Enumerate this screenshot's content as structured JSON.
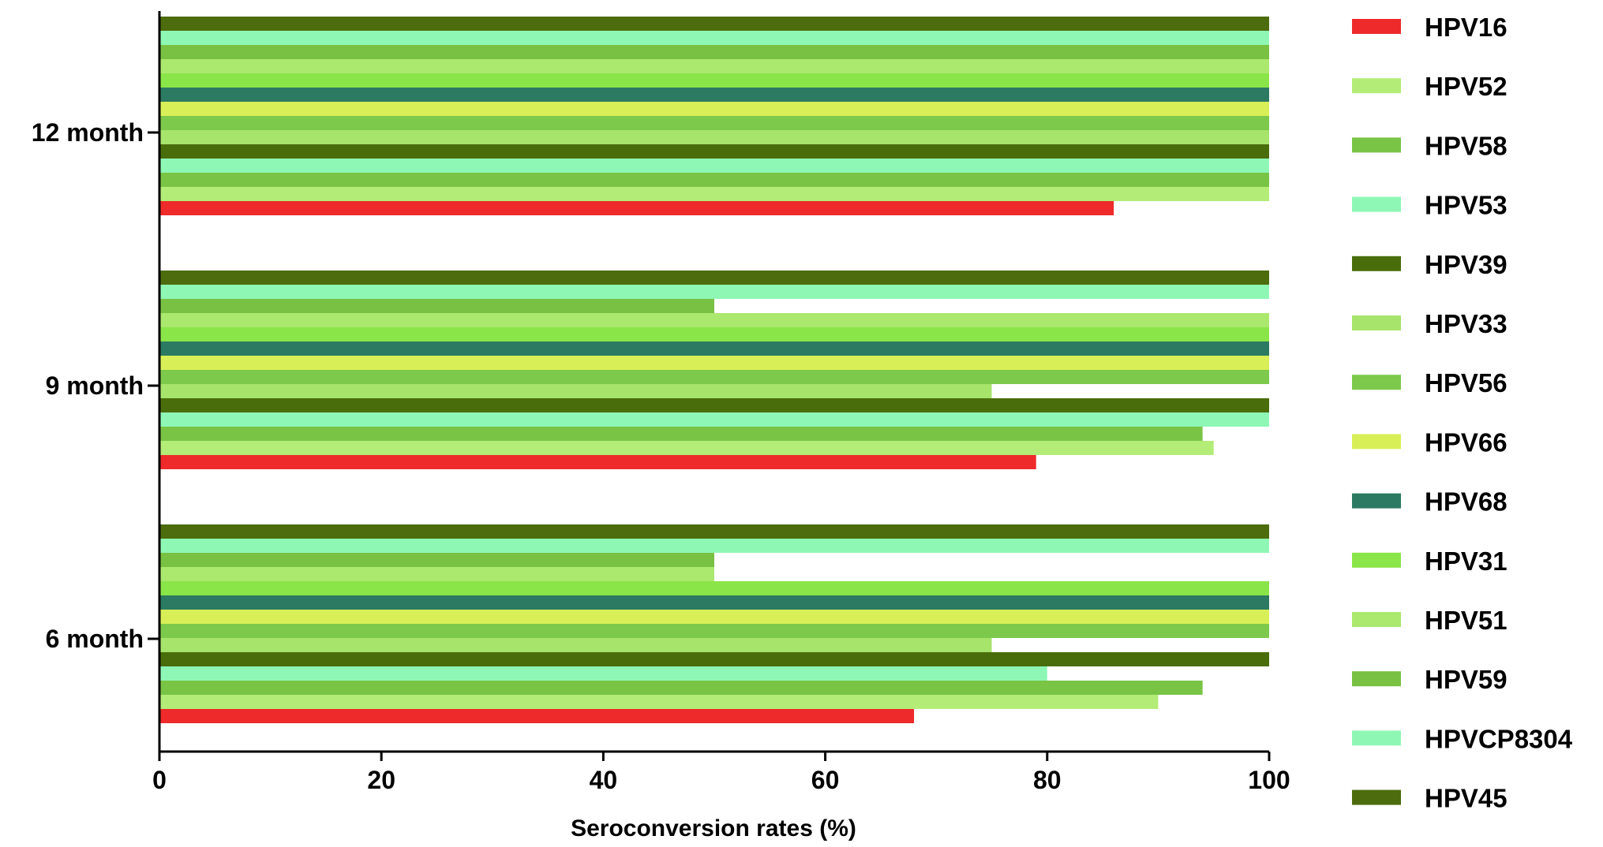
{
  "chart_data": {
    "type": "bar",
    "orientation": "horizontal",
    "xlabel": "Seroconversion rates (%)",
    "ylabel": "",
    "xlim": [
      0,
      100
    ],
    "x_ticks": [
      "0",
      "20",
      "40",
      "60",
      "80",
      "100"
    ],
    "categories": [
      "12 month",
      "9 month",
      "6 month"
    ],
    "legend_position": "right",
    "grid": false,
    "series": [
      {
        "name": "HPV16",
        "color": "#ee2a2a",
        "values": [
          86,
          79,
          68
        ]
      },
      {
        "name": "HPV52",
        "color": "#b3ec77",
        "values": [
          100,
          95,
          90
        ]
      },
      {
        "name": "HPV58",
        "color": "#79c445",
        "values": [
          100,
          94,
          94
        ]
      },
      {
        "name": "HPV53",
        "color": "#8ef7b6",
        "values": [
          100,
          100,
          80
        ]
      },
      {
        "name": "HPV39",
        "color": "#4a6d0b",
        "values": [
          100,
          100,
          100
        ]
      },
      {
        "name": "HPV33",
        "color": "#a6e46b",
        "values": [
          100,
          75,
          75
        ]
      },
      {
        "name": "HPV56",
        "color": "#7cc94b",
        "values": [
          100,
          100,
          100
        ]
      },
      {
        "name": "HPV66",
        "color": "#d9ef57",
        "values": [
          100,
          100,
          100
        ]
      },
      {
        "name": "HPV68",
        "color": "#2c7a62",
        "values": [
          100,
          100,
          100
        ]
      },
      {
        "name": "HPV31",
        "color": "#8ae548",
        "values": [
          100,
          100,
          100
        ]
      },
      {
        "name": "HPV51",
        "color": "#abe86e",
        "values": [
          100,
          100,
          50
        ]
      },
      {
        "name": "HPV59",
        "color": "#79c142",
        "values": [
          100,
          50,
          50
        ]
      },
      {
        "name": "HPVCP8304",
        "color": "#8ff7b4",
        "values": [
          100,
          100,
          100
        ]
      },
      {
        "name": "HPV45",
        "color": "#4c6c0d",
        "values": [
          100,
          100,
          100
        ]
      }
    ]
  }
}
